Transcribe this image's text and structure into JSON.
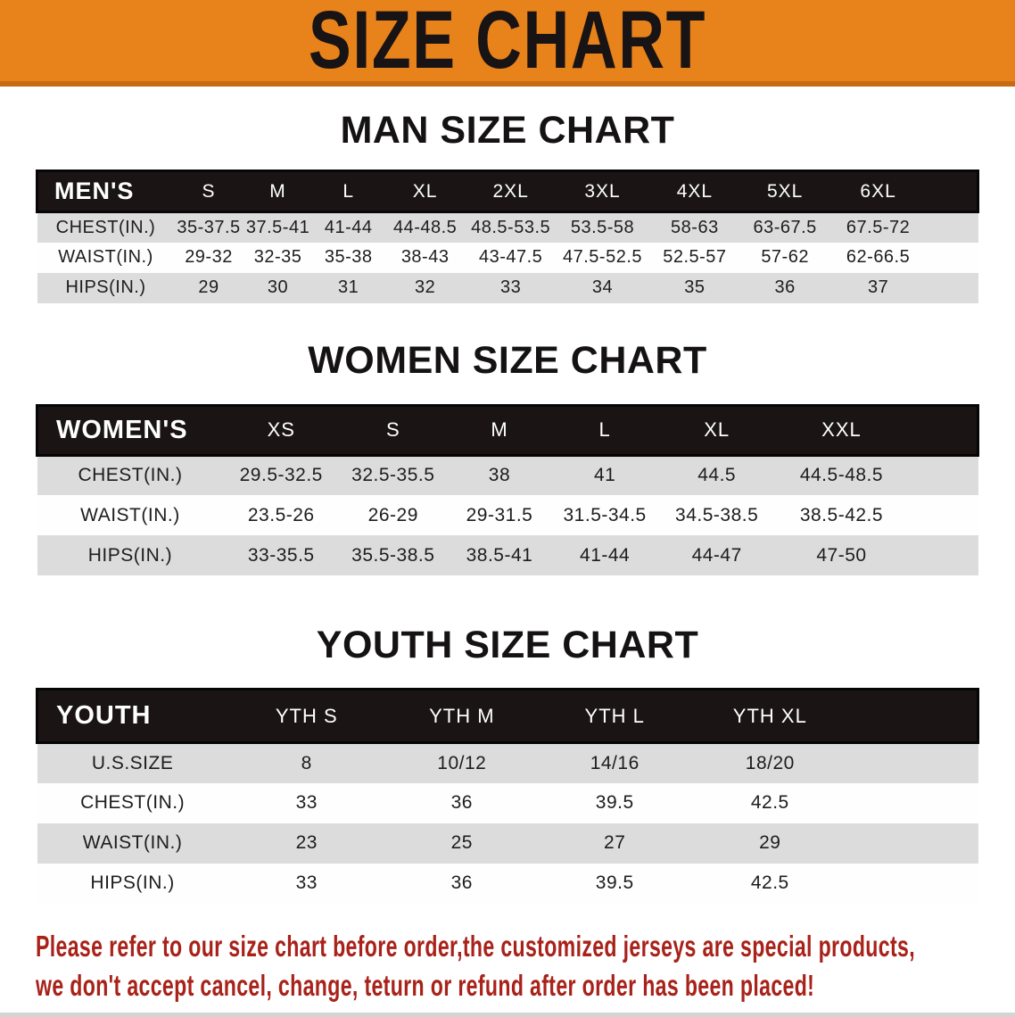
{
  "banner": {
    "title": "SIZE CHART"
  },
  "sections": [
    {
      "title": "MAN SIZE CHART",
      "table": {
        "header_label": "MEN'S",
        "columns": [
          "S",
          "M",
          "L",
          "XL",
          "2XL",
          "3XL",
          "4XL",
          "5XL",
          "6XL"
        ],
        "rows": [
          {
            "label": "CHEST(IN.)",
            "values": [
              "35-37.5",
              "37.5-41",
              "41-44",
              "44-48.5",
              "48.5-53.5",
              "53.5-58",
              "58-63",
              "63-67.5",
              "67.5-72"
            ]
          },
          {
            "label": "WAIST(IN.)",
            "values": [
              "29-32",
              "32-35",
              "35-38",
              "38-43",
              "43-47.5",
              "47.5-52.5",
              "52.5-57",
              "57-62",
              "62-66.5"
            ]
          },
          {
            "label": "HIPS(IN.)",
            "values": [
              "29",
              "30",
              "31",
              "32",
              "33",
              "34",
              "35",
              "36",
              "37"
            ]
          }
        ]
      }
    },
    {
      "title": "WOMEN SIZE CHART",
      "table": {
        "header_label": "WOMEN'S",
        "columns": [
          "XS",
          "S",
          "M",
          "L",
          "XL",
          "XXL"
        ],
        "rows": [
          {
            "label": "CHEST(IN.)",
            "values": [
              "29.5-32.5",
              "32.5-35.5",
              "38",
              "41",
              "44.5",
              "44.5-48.5"
            ]
          },
          {
            "label": "WAIST(IN.)",
            "values": [
              "23.5-26",
              "26-29",
              "29-31.5",
              "31.5-34.5",
              "34.5-38.5",
              "38.5-42.5"
            ]
          },
          {
            "label": "HIPS(IN.)",
            "values": [
              "33-35.5",
              "35.5-38.5",
              "38.5-41",
              "41-44",
              "44-47",
              "47-50"
            ]
          }
        ]
      }
    },
    {
      "title": "YOUTH SIZE CHART",
      "table": {
        "header_label": "YOUTH",
        "columns": [
          "YTH S",
          "YTH M",
          "YTH L",
          "YTH XL"
        ],
        "rows": [
          {
            "label": "U.S.SIZE",
            "values": [
              "8",
              "10/12",
              "14/16",
              "18/20"
            ]
          },
          {
            "label": "CHEST(IN.)",
            "values": [
              "33",
              "36",
              "39.5",
              "42.5"
            ]
          },
          {
            "label": "WAIST(IN.)",
            "values": [
              "23",
              "25",
              "27",
              "29"
            ]
          },
          {
            "label": "HIPS(IN.)",
            "values": [
              "33",
              "36",
              "39.5",
              "42.5"
            ]
          }
        ]
      }
    }
  ],
  "disclaimer": {
    "lines": [
      "Please refer to our size chart before order,the customized jerseys are special products,",
      "we don't accept cancel, change, teturn or refund after order has been placed!"
    ]
  },
  "colors": {
    "banner_bg": "#E8821A",
    "banner_edge": "#C76B12",
    "table_header_bg": "#1A1415",
    "stripe_gray": "#DCDCDC",
    "disclaimer_red": "#A8221A",
    "title_black": "#141114"
  }
}
